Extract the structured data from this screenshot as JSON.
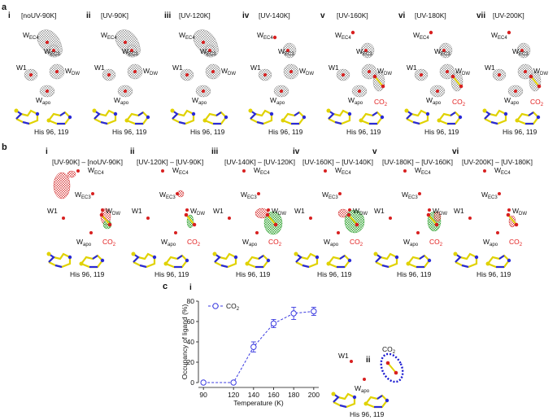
{
  "figure": {
    "panel_a": {
      "letter": "a",
      "panels": [
        {
          "roman": "i",
          "title": "[noUV-90K]"
        },
        {
          "roman": "ii",
          "title": "[UV-90K]"
        },
        {
          "roman": "iii",
          "title": "[UV-120K]"
        },
        {
          "roman": "iv",
          "title": "[UV-140K]"
        },
        {
          "roman": "v",
          "title": "[UV-160K]"
        },
        {
          "roman": "vi",
          "title": "[UV-180K]"
        },
        {
          "roman": "vii",
          "title": "[UV-200K]"
        }
      ]
    },
    "panel_b": {
      "letter": "b",
      "panels": [
        {
          "roman": "i",
          "title": "[UV-90K] – [noUV-90K]"
        },
        {
          "roman": "ii",
          "title": "[UV-120K] – [UV-90K]"
        },
        {
          "roman": "iii",
          "title": "[UV-140K] – [UV-120K]"
        },
        {
          "roman": "iv",
          "title": "[UV-160K] – [UV-140K]"
        },
        {
          "roman": "v",
          "title": "[UV-180K] – [UV-160K]"
        },
        {
          "roman": "vi",
          "title": "[UV-200K] – [UV-180K]"
        }
      ]
    },
    "labels": {
      "w": "W",
      "ec4_sub": "EC4",
      "ec3_sub": "EC3",
      "dw_sub": "DW",
      "apo_sub": "apo",
      "w1": "W1",
      "co2_main": "CO",
      "co2_sub": "2",
      "his": "His 96, 119"
    },
    "panel_c": {
      "letter": "c",
      "sub_i": "i",
      "sub_ii": "ii"
    }
  },
  "chart_data": {
    "type": "line",
    "title": "",
    "xlabel": "Temperature (K)",
    "ylabel": "Occupancy of ligand (%)",
    "xlim": [
      85,
      205
    ],
    "ylim": [
      0,
      80
    ],
    "xticks": [
      90,
      120,
      140,
      160,
      180,
      200
    ],
    "yticks": [
      0,
      20,
      40,
      60,
      80
    ],
    "series": [
      {
        "name": "CO2",
        "legend_main": "CO",
        "legend_sub": "2",
        "x": [
          90,
          120,
          140,
          160,
          180,
          200
        ],
        "y": [
          0,
          0,
          35,
          58,
          68,
          70
        ],
        "err": [
          0,
          0,
          5,
          4,
          6,
          4
        ],
        "color": "#3a3ae0"
      }
    ],
    "grid": false,
    "legend_position": "top-left"
  }
}
